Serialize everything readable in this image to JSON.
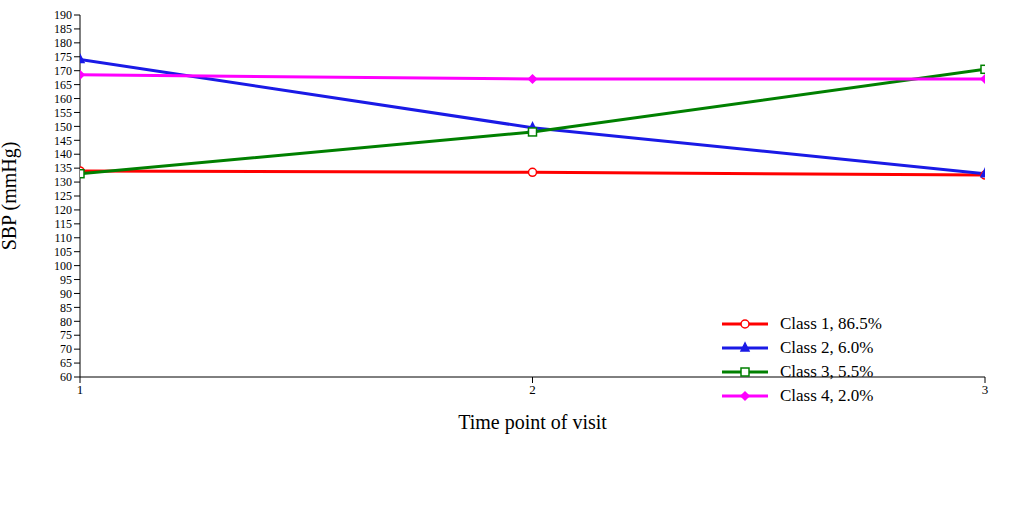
{
  "chart_data": {
    "type": "line",
    "x_label": "Time point of visit",
    "y_label": "SBP (mmHg)",
    "x": [
      1,
      2,
      3
    ],
    "xlim": [
      1,
      3
    ],
    "xticks": [
      1,
      2,
      3
    ],
    "ylim": [
      60,
      190
    ],
    "yticks": [
      60,
      65,
      70,
      75,
      80,
      85,
      90,
      95,
      100,
      105,
      110,
      115,
      120,
      125,
      130,
      135,
      140,
      145,
      150,
      155,
      160,
      165,
      170,
      175,
      180,
      185,
      190
    ],
    "grid": false,
    "legend": "lower right",
    "series": [
      {
        "name": "Class 1, 86.5%",
        "color": "#ff0000",
        "marker": "circle",
        "values": [
          134,
          133.5,
          132.5
        ]
      },
      {
        "name": "Class 2, 6.0%",
        "color": "#1a1ae6",
        "marker": "triangle",
        "values": [
          174,
          149.5,
          133
        ]
      },
      {
        "name": "Class 3, 5.5%",
        "color": "#008000",
        "marker": "square",
        "values": [
          133,
          148,
          170.5
        ]
      },
      {
        "name": "Class 4, 2.0%",
        "color": "#ff00ff",
        "marker": "diamond",
        "values": [
          168.5,
          167,
          167
        ]
      }
    ]
  }
}
